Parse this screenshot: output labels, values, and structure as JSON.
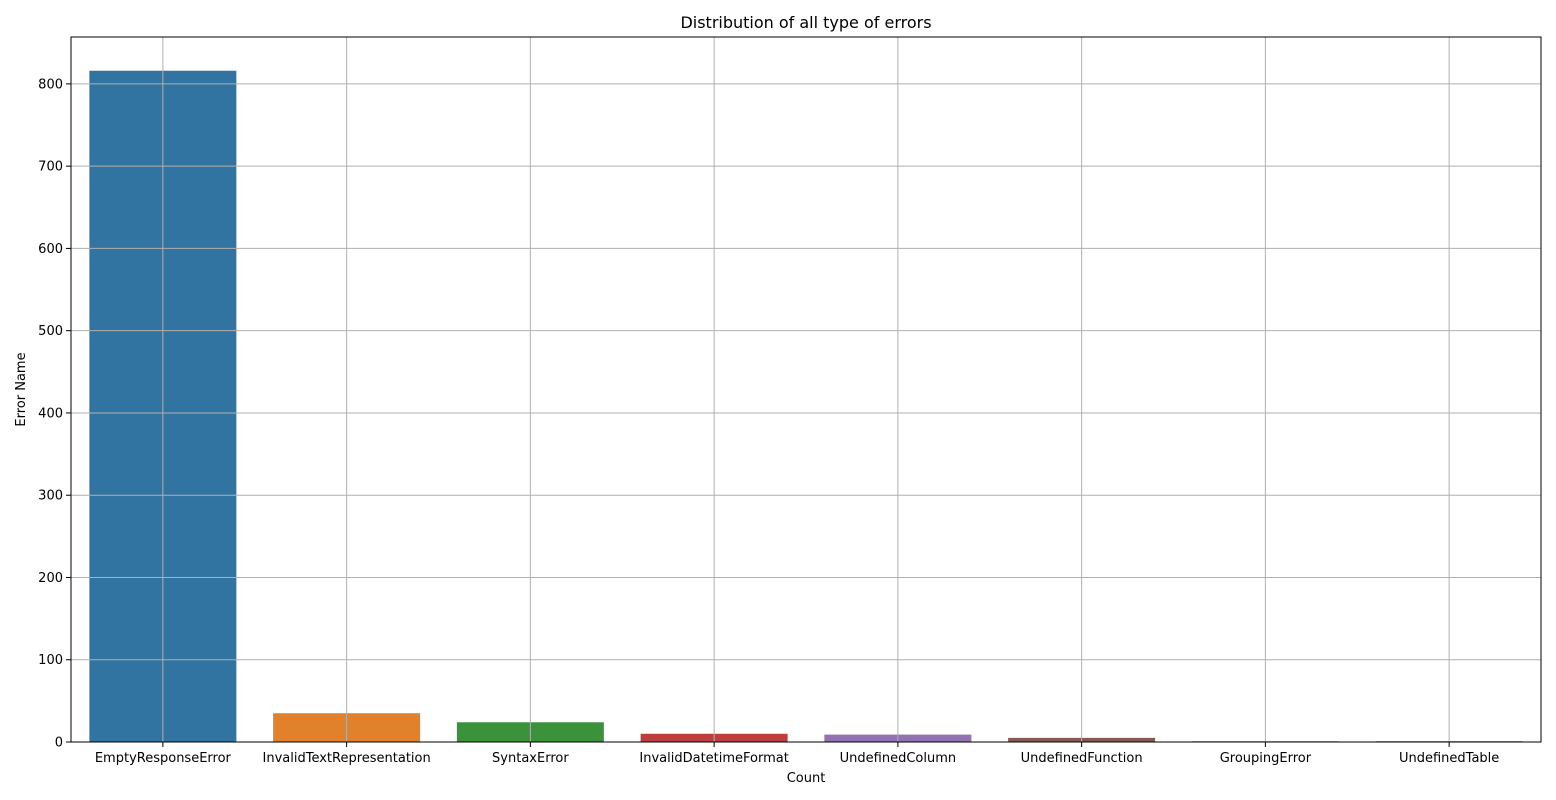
{
  "chart_data": {
    "type": "bar",
    "title": "Distribution of all type of errors",
    "xlabel": "Count",
    "ylabel": "Error Name",
    "categories": [
      "EmptyResponseError",
      "InvalidTextRepresentation",
      "SyntaxError",
      "InvalidDatetimeFormat",
      "UndefinedColumn",
      "UndefinedFunction",
      "GroupingError",
      "UndefinedTable"
    ],
    "values": [
      816,
      35,
      24,
      10,
      9,
      5,
      1,
      1
    ],
    "colors": [
      "#3274a1",
      "#e1812c",
      "#3a923a",
      "#c03d3e",
      "#9372b2",
      "#845b53",
      "#d684bd",
      "#7f7f7f"
    ],
    "yticks": [
      0,
      100,
      200,
      300,
      400,
      500,
      600,
      700,
      800
    ],
    "ylim": [
      0,
      857
    ],
    "grid": true,
    "grid_color": "#b0b0b0",
    "legend": "none"
  }
}
